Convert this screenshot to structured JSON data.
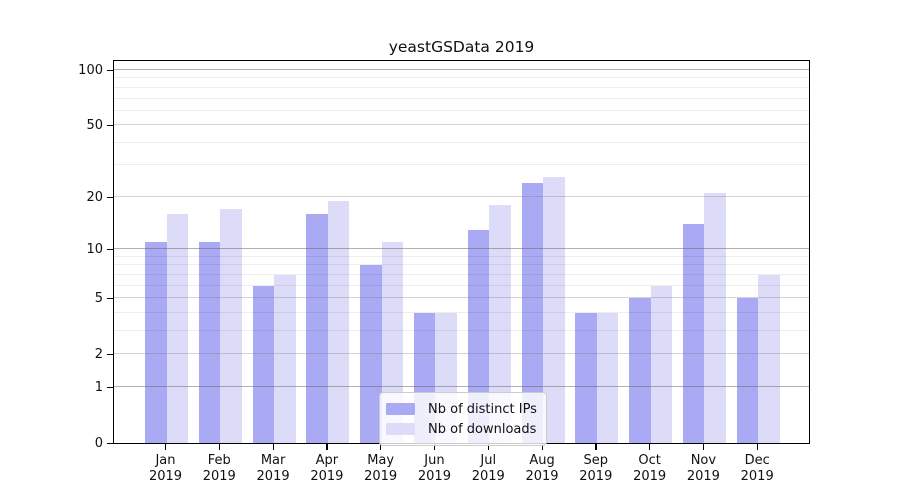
{
  "chart_data": {
    "type": "bar",
    "title": "yeastGSData 2019",
    "categories": [
      "Jan 2019",
      "Feb 2019",
      "Mar 2019",
      "Apr 2019",
      "May 2019",
      "Jun 2019",
      "Jul 2019",
      "Aug 2019",
      "Sep 2019",
      "Oct 2019",
      "Nov 2019",
      "Dec 2019"
    ],
    "series": [
      {
        "name": "Nb of distinct IPs",
        "color": "#a9a9f4",
        "values": [
          11,
          11,
          6,
          16,
          8,
          4,
          13,
          24,
          4,
          5,
          14,
          5
        ]
      },
      {
        "name": "Nb of downloads",
        "color": "#dcdcf9",
        "values": [
          16,
          17,
          7,
          19,
          11,
          4,
          18,
          26,
          4,
          6,
          21,
          7
        ]
      }
    ],
    "yscale": "log1p",
    "ylim": [
      0,
      114
    ],
    "ytick_values": [
      0,
      1,
      2,
      5,
      10,
      20,
      50,
      100
    ],
    "ytick_labels": [
      "0",
      "1",
      "2",
      "5",
      "10",
      "20",
      "50",
      "100"
    ],
    "minor_gridline_values": [
      3,
      4,
      6,
      7,
      8,
      9,
      30,
      40,
      60,
      70,
      80,
      90
    ],
    "decade_gridline_values": [
      1,
      10,
      100
    ],
    "grid": true,
    "legend_position": "lower-center-inside",
    "xlabel": "",
    "ylabel": ""
  }
}
